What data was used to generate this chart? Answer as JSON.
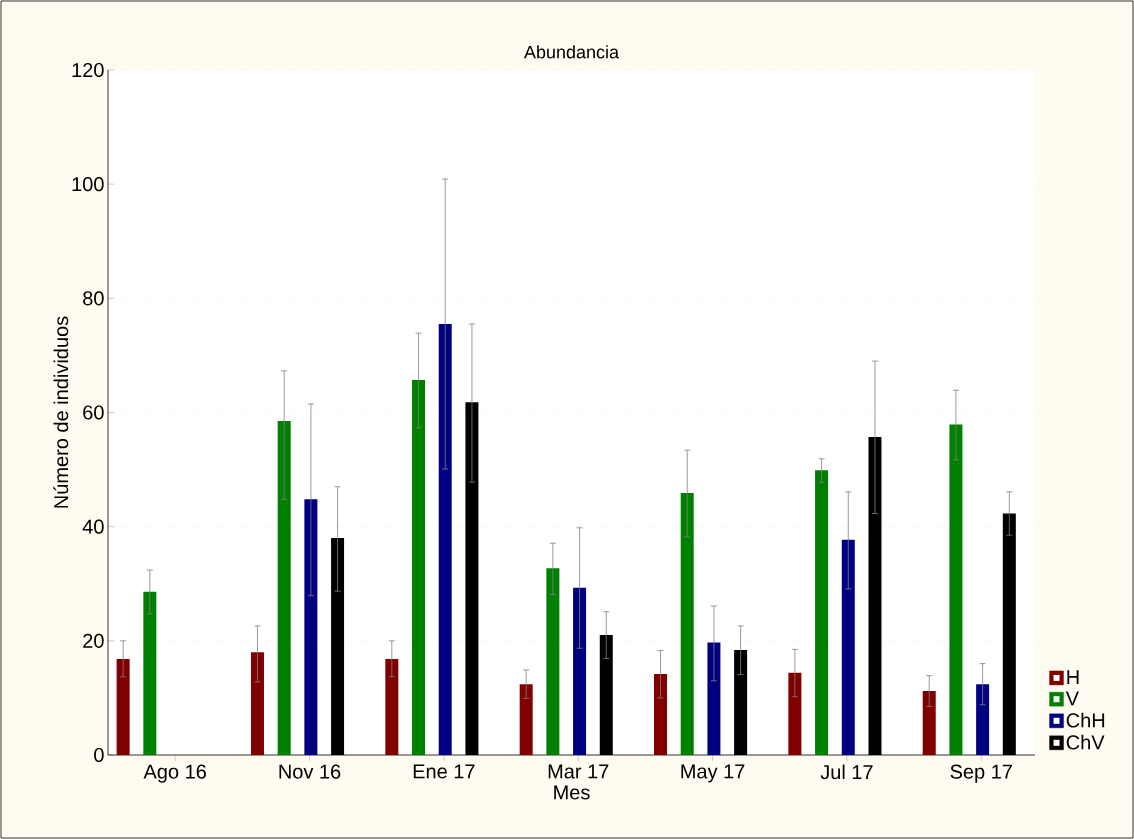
{
  "chart_data": {
    "type": "bar",
    "title": "Abundancia",
    "xlabel": "Mes",
    "ylabel": "Número de individuos",
    "categories": [
      "Ago 16",
      "Nov 16",
      "Ene 17",
      "Mar 17",
      "May 17",
      "Jul 17",
      "Sep 17"
    ],
    "series": [
      {
        "name": "H",
        "color": "#800000",
        "values": [
          16.8,
          18,
          16.8,
          12.4,
          14.2,
          14.4,
          11.2
        ],
        "errors": [
          [
            13.7,
            20
          ],
          [
            12.8,
            22.6
          ],
          [
            13.7,
            20
          ],
          [
            9.9,
            14.9
          ],
          [
            10,
            18.3
          ],
          [
            10.2,
            18.5
          ],
          [
            8.5,
            13.9
          ]
        ]
      },
      {
        "name": "V",
        "color": "#008000",
        "values": [
          28.6,
          58.5,
          65.7,
          32.7,
          45.9,
          49.9,
          57.9
        ],
        "errors": [
          [
            24.7,
            32.4
          ],
          [
            44.8,
            67.3
          ],
          [
            57.3,
            73.9
          ],
          [
            28.1,
            37.1
          ],
          [
            38.2,
            53.4
          ],
          [
            47.8,
            51.9
          ],
          [
            51.7,
            63.9
          ]
        ]
      },
      {
        "name": "ChH",
        "color": "#000080",
        "values": [
          null,
          44.8,
          75.5,
          29.3,
          19.7,
          37.7,
          12.4
        ],
        "errors": [
          null,
          [
            27.9,
            61.5
          ],
          [
            50.1,
            100.9
          ],
          [
            18.7,
            39.8
          ],
          [
            13,
            26.1
          ],
          [
            29.1,
            46.1
          ],
          [
            8.8,
            16
          ]
        ]
      },
      {
        "name": "ChV",
        "color": "#000000",
        "values": [
          null,
          38,
          61.8,
          21,
          18.4,
          55.7,
          42.3
        ],
        "errors": [
          null,
          [
            28.7,
            47
          ],
          [
            47.8,
            75.5
          ],
          [
            16.9,
            25.1
          ],
          [
            14.1,
            22.6
          ],
          [
            42.3,
            69
          ],
          [
            38.5,
            46.1
          ]
        ]
      }
    ],
    "ylim": [
      0,
      120
    ],
    "yticks": [
      0,
      20,
      40,
      60,
      80,
      100,
      120
    ],
    "grid": "y",
    "legend": "bottom right"
  }
}
